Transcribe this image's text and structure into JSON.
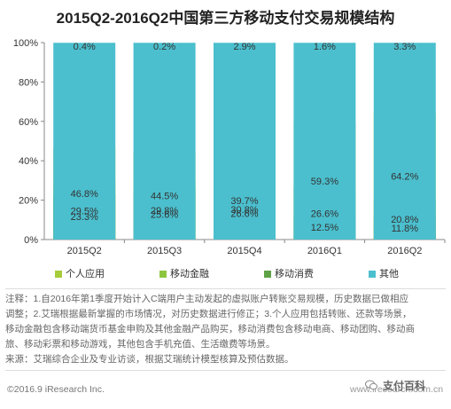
{
  "title": "2015Q2-2016Q2中国第三方移动支付交易规模结构",
  "chart_data": {
    "type": "bar",
    "stacked": true,
    "title": "2015Q2-2016Q2中国第三方移动支付交易规模结构",
    "categories": [
      "2015Q2",
      "2015Q3",
      "2015Q4",
      "2016Q1",
      "2016Q2"
    ],
    "series": [
      {
        "name": "个人应用",
        "color": "#a6cd39",
        "values": [
          29.5,
          29.8,
          30.8,
          59.3,
          64.2
        ],
        "labels": [
          "29.5%",
          "29.8%",
          "30.8%",
          "59.3%",
          "64.2%"
        ]
      },
      {
        "name": "移动金融",
        "color": "#8cc63f",
        "values": [
          46.8,
          44.5,
          39.7,
          26.6,
          20.8
        ],
        "labels": [
          "46.8%",
          "44.5%",
          "39.7%",
          "26.6%",
          "20.8%"
        ]
      },
      {
        "name": "移动消费",
        "color": "#5ea247",
        "values": [
          23.3,
          25.6,
          26.6,
          12.5,
          11.8
        ],
        "labels": [
          "23.3%",
          "25.6%",
          "26.6%",
          "12.5%",
          "11.8%"
        ]
      },
      {
        "name": "其他",
        "color": "#4bbfce",
        "values": [
          0.4,
          0.2,
          2.9,
          1.6,
          3.3
        ],
        "labels": [
          "0.4%",
          "0.2%",
          "2.9%",
          "1.6%",
          "3.3%"
        ]
      }
    ],
    "y_ticks": [
      "0%",
      "20%",
      "40%",
      "60%",
      "80%",
      "100%"
    ],
    "ylim": [
      0,
      100
    ],
    "grid": false,
    "legend_position": "bottom"
  },
  "notes": [
    "注释：1.自2016年第1季度开始计入C端用户主动发起的虚拟账户转账交易规模，历史数据已做相应",
    "调整；2.艾瑞根据最新掌握的市场情况，对历史数据进行修正；3.个人应用包括转账、还款等场景，",
    "移动金融包含移动端货币基金申购及其他金融产品购买，移动消费包含移动电商、移动团购、移动商",
    "旅、移动彩票和移动游戏，其他包含手机充值、生活缴费等场景。",
    "来源：艾瑞综合企业及专业访谈，根据艾瑞统计模型核算及预估数据。"
  ],
  "footer": {
    "copyright": "©2016.9 iResearch Inc.",
    "site": "www.iresearch.com.cn",
    "watermark": "支付百科"
  }
}
